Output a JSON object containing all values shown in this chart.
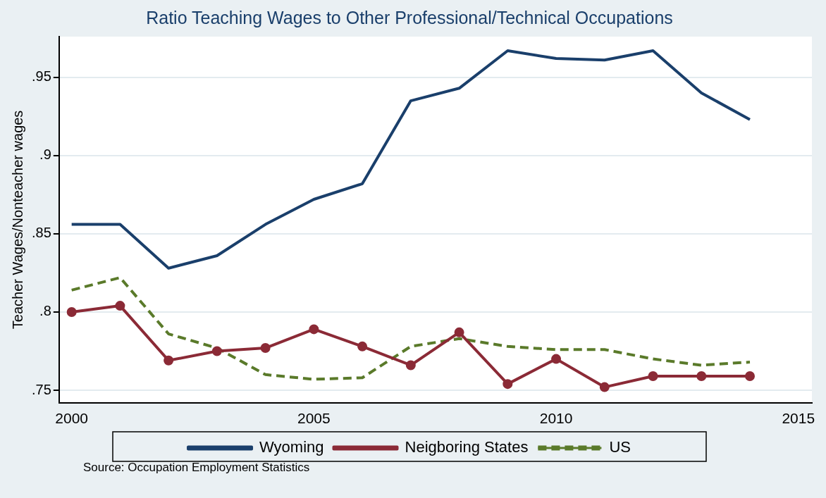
{
  "chart_data": {
    "type": "line",
    "title": "Ratio Teaching Wages to Other Professional/Technical Occupations",
    "ylabel": "Teacher Wages/Nonteacher wages",
    "x": [
      2000,
      2001,
      2002,
      2003,
      2004,
      2005,
      2006,
      2007,
      2008,
      2009,
      2010,
      2011,
      2012,
      2013,
      2014
    ],
    "series": [
      {
        "name": "Wyoming",
        "color": "#1a3f6b",
        "marker": "none",
        "line_style": "solid",
        "values": [
          0.856,
          0.856,
          0.828,
          0.836,
          0.856,
          0.872,
          0.882,
          0.935,
          0.943,
          0.967,
          0.962,
          0.961,
          0.967,
          0.94,
          0.923
        ]
      },
      {
        "name": "Neigboring States",
        "color": "#8b2a36",
        "marker": "circle",
        "line_style": "solid",
        "values": [
          0.8,
          0.804,
          0.769,
          0.775,
          0.777,
          0.789,
          0.778,
          0.766,
          0.787,
          0.754,
          0.77,
          0.752,
          0.759,
          0.759,
          0.759
        ]
      },
      {
        "name": "US",
        "color": "#5a7a2a",
        "marker": "none",
        "line_style": "dashed",
        "values": [
          0.814,
          0.822,
          0.786,
          0.777,
          0.76,
          0.757,
          0.758,
          0.778,
          0.783,
          0.778,
          0.776,
          0.776,
          0.77,
          0.766,
          0.768
        ]
      }
    ],
    "xlim": [
      1999.74,
      2015.28
    ],
    "xticks": [
      2000,
      2005,
      2010,
      2015
    ],
    "ylim": [
      0.742,
      0.976
    ],
    "yticks": [
      {
        "value": 0.75,
        "label": ".75"
      },
      {
        "value": 0.8,
        "label": ".8"
      },
      {
        "value": 0.85,
        "label": ".85"
      },
      {
        "value": 0.9,
        "label": ".9"
      },
      {
        "value": 0.95,
        "label": ".95"
      }
    ],
    "grid": "y",
    "legend": "bottom",
    "annotations": [
      "Source: Occupation Employment Statistics"
    ]
  }
}
